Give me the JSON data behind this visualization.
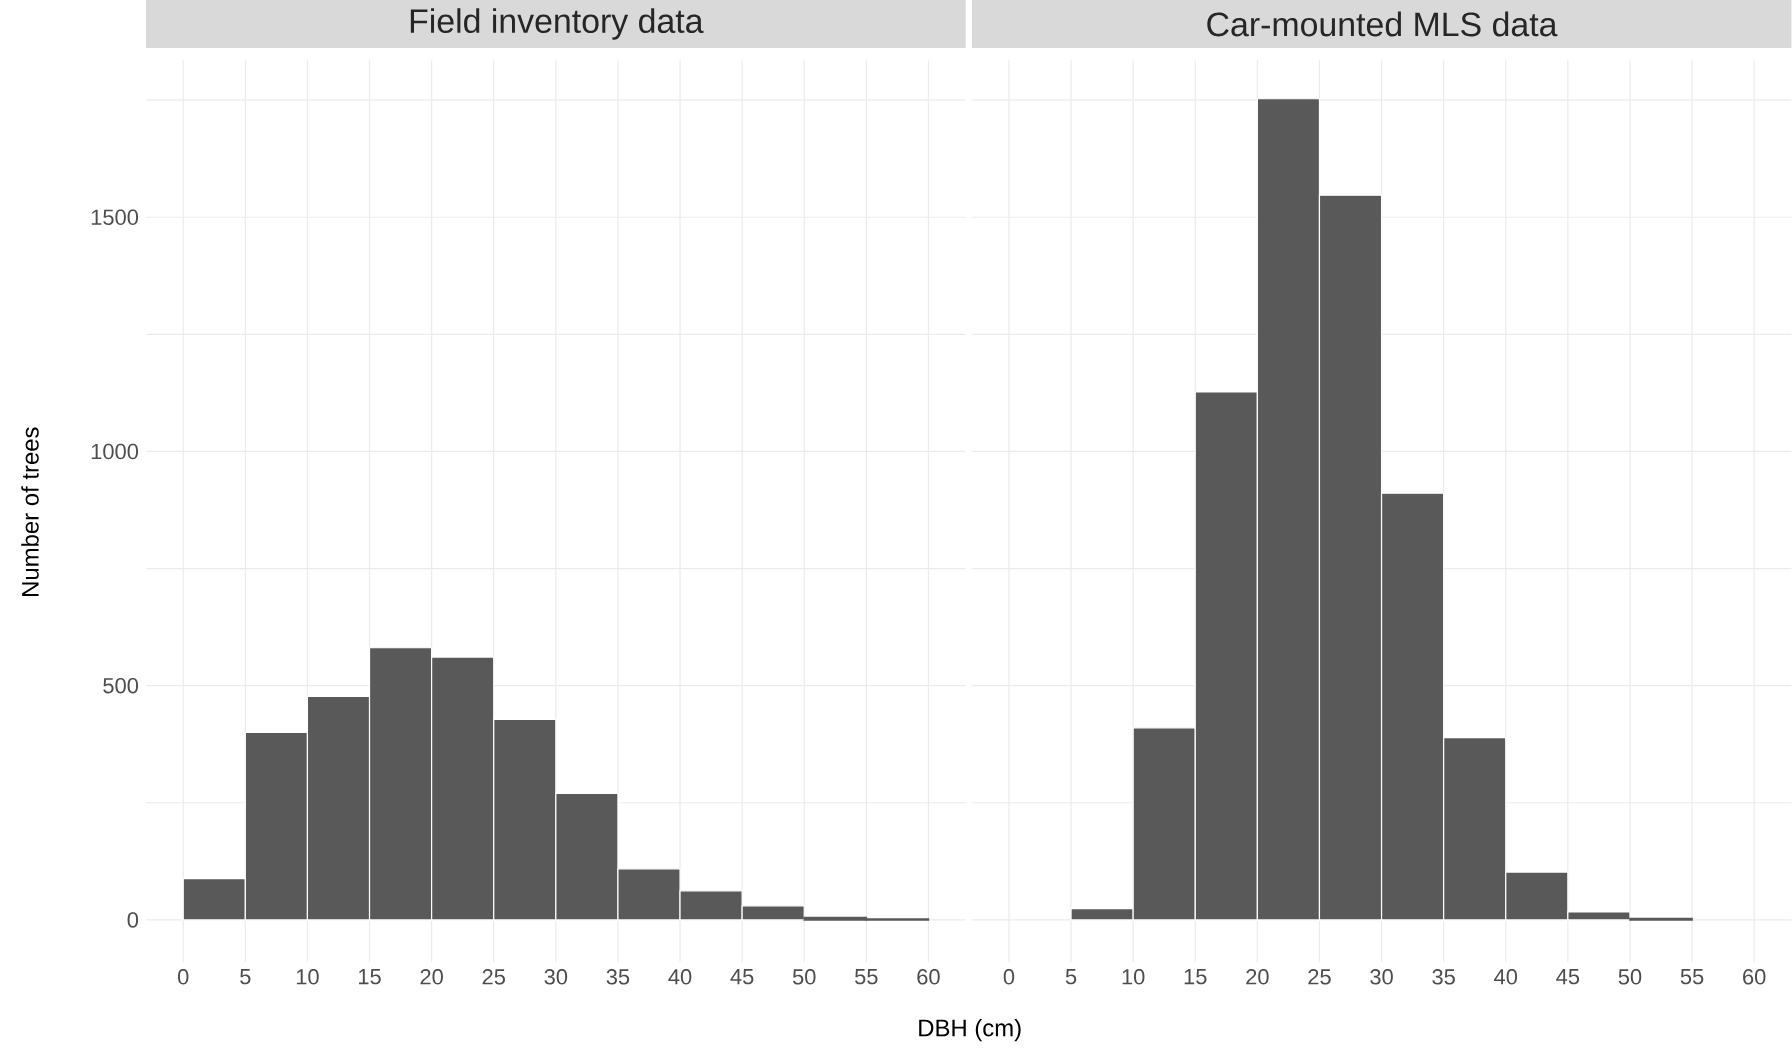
{
  "chart_data": [
    {
      "type": "histogram",
      "title": "Field inventory data",
      "xlabel": "DBH (cm)",
      "ylabel": "Number of trees",
      "color": "#595959",
      "bins": [
        0,
        5,
        10,
        15,
        20,
        25,
        30,
        35,
        40,
        45,
        50,
        55,
        60
      ],
      "values": [
        88,
        400,
        477,
        581,
        561,
        428,
        270,
        109,
        62,
        30,
        5,
        2
      ],
      "xlim": [
        -3,
        63
      ],
      "ylim": [
        -90,
        1835
      ],
      "xticks": [
        0,
        5,
        10,
        15,
        20,
        25,
        30,
        35,
        40,
        45,
        50,
        55,
        60
      ],
      "yticks": [
        0,
        {
          "value": 250,
          "label": null
        },
        500,
        {
          "value": 750,
          "label": null
        },
        1000,
        {
          "value": 1250,
          "label": null
        },
        1500,
        {
          "value": 1750,
          "label": null
        }
      ],
      "grid": true
    },
    {
      "type": "histogram",
      "title": "Car-mounted MLS data",
      "color": "#595959",
      "bins": [
        0,
        5,
        10,
        15,
        20,
        25,
        30,
        35,
        40,
        45,
        50,
        55,
        60
      ],
      "values": [
        0,
        24,
        410,
        1127,
        1753,
        1547,
        911,
        389,
        102,
        17,
        3,
        0
      ],
      "xlim": [
        -3,
        63
      ],
      "ylim": [
        -90,
        1835
      ],
      "xticks": [
        0,
        5,
        10,
        15,
        20,
        25,
        30,
        35,
        40,
        45,
        50,
        55,
        60
      ],
      "yticks": [
        0,
        {
          "value": 250,
          "label": null
        },
        500,
        {
          "value": 750,
          "label": null
        },
        1000,
        {
          "value": 1250,
          "label": null
        },
        1500,
        {
          "value": 1750,
          "label": null
        }
      ],
      "grid": true,
      "tick_labels": "x"
    }
  ]
}
